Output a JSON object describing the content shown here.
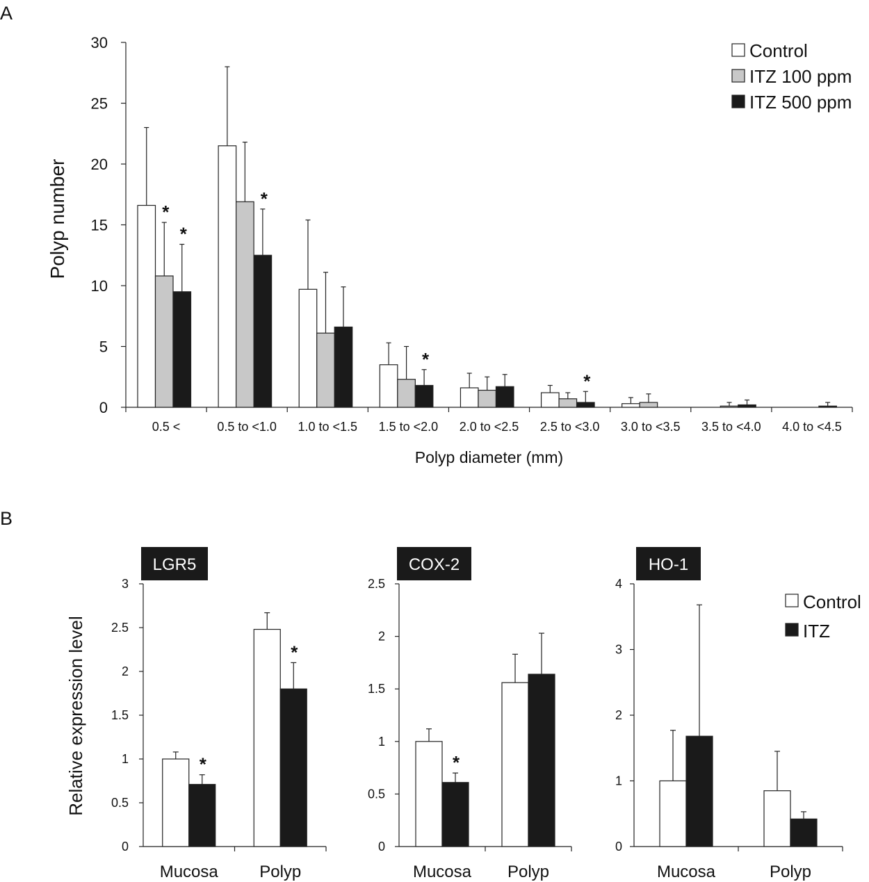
{
  "chart_data": [
    {
      "panel": "A",
      "type": "bar",
      "title": "",
      "xlabel": "Polyp diameter (mm)",
      "ylabel": "Polyp number",
      "ylim": [
        0,
        30
      ],
      "yticks": [
        0,
        5,
        10,
        15,
        20,
        25,
        30
      ],
      "legend_position": "top-right",
      "categories": [
        "0.5 <",
        "0.5 to <1.0",
        "1.0 to <1.5",
        "1.5 to <2.0",
        "2.0 to <2.5",
        "2.5 to <3.0",
        "3.0 to <3.5",
        "3.5 to <4.0",
        "4.0 to <4.5"
      ],
      "series": [
        {
          "name": "Control",
          "fill": "#ffffff",
          "values": [
            16.6,
            21.5,
            9.7,
            3.5,
            1.6,
            1.2,
            0.3,
            0.0,
            0.0
          ],
          "errors": [
            6.4,
            6.5,
            5.7,
            1.8,
            1.2,
            0.6,
            0.5,
            0.0,
            0.0
          ]
        },
        {
          "name": "ITZ 100 ppm",
          "fill": "#c8c8c8",
          "values": [
            10.8,
            16.9,
            6.1,
            2.3,
            1.4,
            0.7,
            0.4,
            0.1,
            0.0
          ],
          "errors": [
            4.4,
            4.9,
            5.0,
            2.7,
            1.1,
            0.5,
            0.7,
            0.3,
            0.0
          ]
        },
        {
          "name": "ITZ 500 ppm",
          "fill": "#1a1a1a",
          "values": [
            9.5,
            12.5,
            6.6,
            1.8,
            1.7,
            0.4,
            0.0,
            0.2,
            0.1
          ],
          "errors": [
            3.9,
            3.8,
            3.3,
            1.3,
            1.0,
            0.9,
            0.0,
            0.4,
            0.3
          ]
        }
      ],
      "significance": [
        {
          "category": 0,
          "series": 1,
          "label": "*"
        },
        {
          "category": 0,
          "series": 2,
          "label": "*"
        },
        {
          "category": 1,
          "series": 2,
          "label": "*"
        },
        {
          "category": 3,
          "series": 2,
          "label": "*"
        },
        {
          "category": 5,
          "series": 2,
          "label": "*"
        }
      ]
    },
    {
      "panel": "B",
      "type": "bar",
      "title": "LGR5",
      "ylabel": "Relative expression level",
      "ylim": [
        0,
        3
      ],
      "yticks": [
        "0",
        "0.5",
        "1",
        "1.5",
        "2",
        "2.5",
        "3"
      ],
      "categories": [
        "Mucosa",
        "Polyp"
      ],
      "series": [
        {
          "name": "Control",
          "fill": "#ffffff",
          "values": [
            1.0,
            2.48
          ],
          "errors": [
            0.08,
            0.19
          ]
        },
        {
          "name": "ITZ",
          "fill": "#1a1a1a",
          "values": [
            0.71,
            1.8
          ],
          "errors": [
            0.11,
            0.3
          ]
        }
      ],
      "significance": [
        {
          "category": 0,
          "series": 1,
          "label": "*"
        },
        {
          "category": 1,
          "series": 1,
          "label": "*"
        }
      ]
    },
    {
      "panel": "B",
      "type": "bar",
      "title": "COX-2",
      "ylim": [
        0,
        2.5
      ],
      "yticks": [
        "0",
        "0.5",
        "1",
        "1.5",
        "2",
        "2.5"
      ],
      "categories": [
        "Mucosa",
        "Polyp"
      ],
      "series": [
        {
          "name": "Control",
          "fill": "#ffffff",
          "values": [
            1.0,
            1.56
          ],
          "errors": [
            0.12,
            0.27
          ]
        },
        {
          "name": "ITZ",
          "fill": "#1a1a1a",
          "values": [
            0.61,
            1.64
          ],
          "errors": [
            0.09,
            0.39
          ]
        }
      ],
      "significance": [
        {
          "category": 0,
          "series": 1,
          "label": "*"
        }
      ]
    },
    {
      "panel": "B",
      "type": "bar",
      "title": "HO-1",
      "ylim": [
        0,
        4
      ],
      "yticks": [
        "0",
        "1",
        "2",
        "3",
        "4"
      ],
      "legend_position": "top-right",
      "categories": [
        "Mucosa",
        "Polyp"
      ],
      "series": [
        {
          "name": "Control",
          "fill": "#ffffff",
          "values": [
            1.0,
            0.85
          ],
          "errors": [
            0.77,
            0.6
          ]
        },
        {
          "name": "ITZ",
          "fill": "#1a1a1a",
          "values": [
            1.68,
            0.42
          ],
          "errors": [
            2.0,
            0.11
          ]
        }
      ],
      "significance": []
    }
  ],
  "panel_labels": {
    "a": "A",
    "b": "B"
  },
  "legend_b": [
    "Control",
    "ITZ"
  ]
}
